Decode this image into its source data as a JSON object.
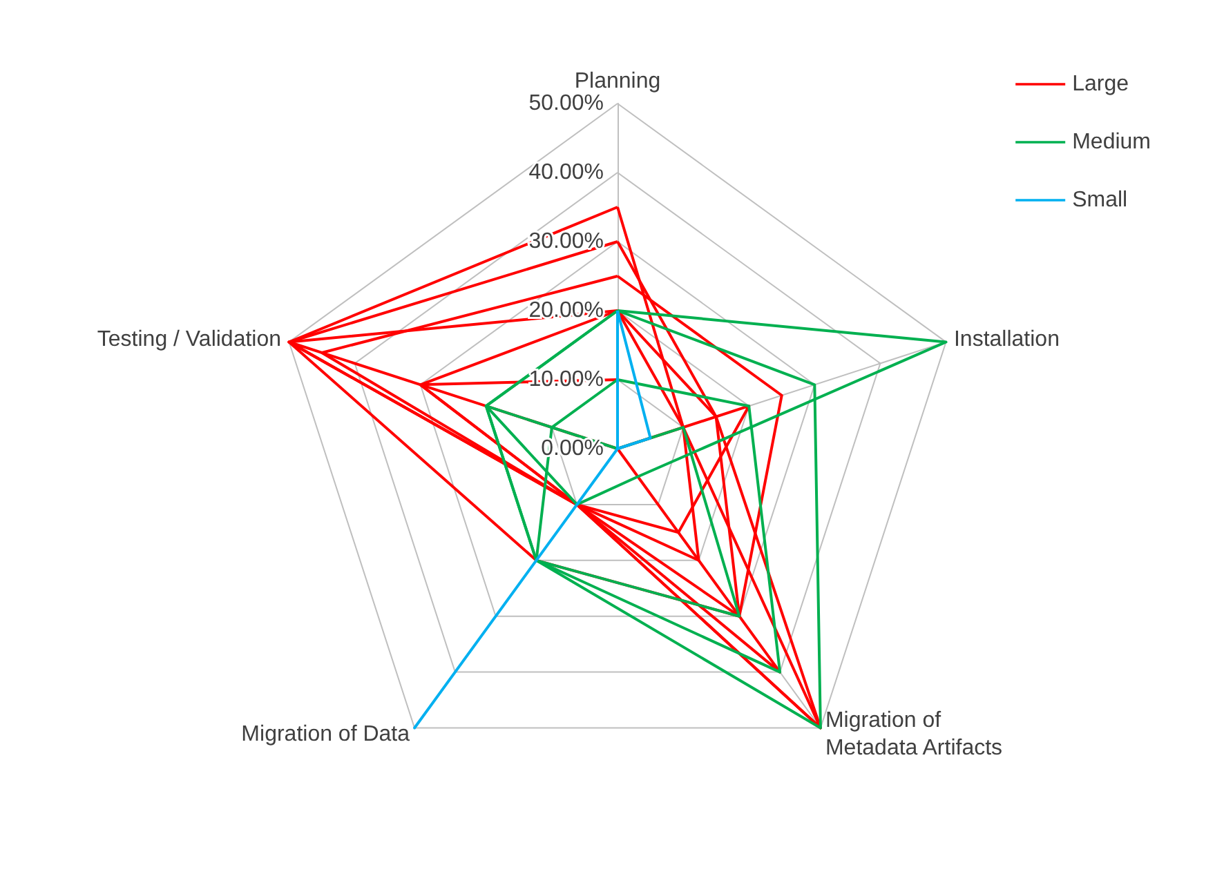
{
  "chart_data": {
    "type": "radar",
    "categories": [
      "Planning",
      "Installation",
      "Migration of\nMetadata Artifacts",
      "Migration of Data",
      "Testing / Validation"
    ],
    "ylim": [
      0,
      50
    ],
    "yticks": [
      {
        "value": 0,
        "label": "0.00%"
      },
      {
        "value": 10,
        "label": "10.00%"
      },
      {
        "value": 20,
        "label": "20.00%"
      },
      {
        "value": 30,
        "label": "30.00%"
      },
      {
        "value": 40,
        "label": "40.00%"
      },
      {
        "value": 50,
        "label": "50.00%"
      }
    ],
    "grid": true,
    "legend": "top right",
    "marker": "none",
    "line_style": "solid",
    "series": [
      {
        "name": "Large",
        "color": "#ff0000",
        "values": [
          35,
          10,
          20,
          10,
          50
        ]
      },
      {
        "color": "#ff0000",
        "values": [
          30,
          15,
          50,
          10,
          50
        ]
      },
      {
        "color": "#ff0000",
        "values": [
          25,
          25,
          30,
          10,
          45
        ]
      },
      {
        "color": "#ff0000",
        "values": [
          20,
          15,
          30,
          20,
          50
        ]
      },
      {
        "color": "#ff0000",
        "values": [
          20,
          10,
          50,
          10,
          30
        ]
      },
      {
        "color": "#ff0000",
        "values": [
          10,
          0,
          40,
          10,
          30
        ]
      },
      {
        "color": "#ff0000",
        "values": [
          0,
          20,
          15,
          10,
          50
        ]
      },
      {
        "name": "Medium",
        "color": "#00b050",
        "values": [
          20,
          50,
          5,
          10,
          20
        ]
      },
      {
        "color": "#00b050",
        "values": [
          20,
          30,
          50,
          20,
          20
        ]
      },
      {
        "color": "#00b050",
        "values": [
          10,
          20,
          40,
          20,
          10
        ]
      },
      {
        "color": "#00b050",
        "values": [
          0,
          10,
          30,
          20,
          20
        ]
      },
      {
        "name": "Small",
        "color": "#00b0f0",
        "values": [
          20,
          5,
          0,
          50,
          0
        ]
      }
    ]
  }
}
